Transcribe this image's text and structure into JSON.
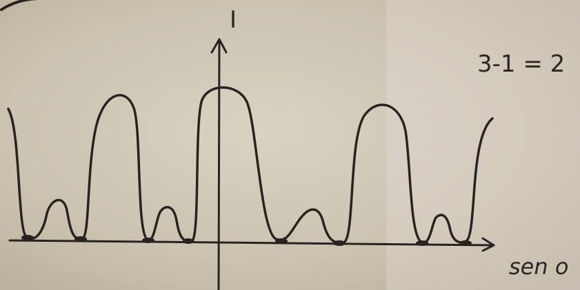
{
  "labels": {
    "y_axis": "I",
    "equation": "3-1 = 2",
    "x_axis": "sen o"
  }
}
